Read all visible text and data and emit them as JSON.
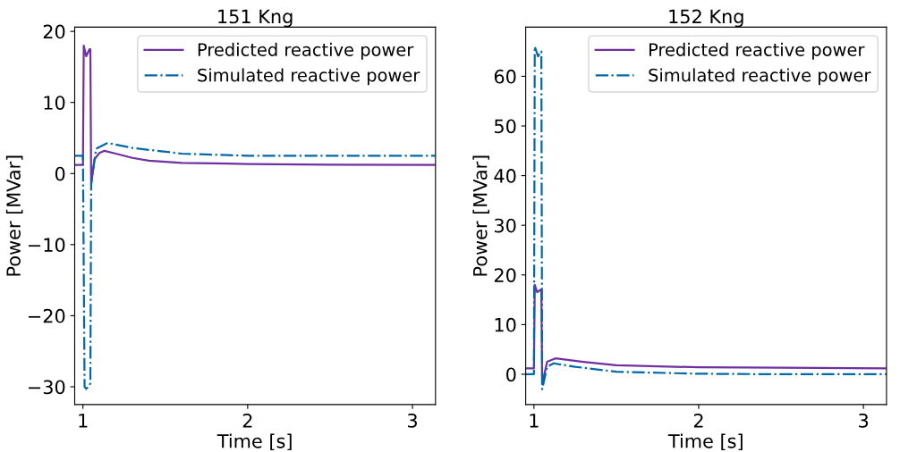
{
  "chart_data": [
    {
      "type": "line",
      "title": "151 Kng",
      "xlabel": "Time [s]",
      "ylabel": "Power [MVar]",
      "xlim": [
        0.95,
        3.14
      ],
      "xticks": [
        1,
        2,
        3
      ],
      "ylim": [
        -32.5,
        20.6
      ],
      "yticks": [
        {
          "value": -30,
          "label": "−30"
        },
        {
          "value": -20,
          "label": "−20"
        },
        {
          "value": -10,
          "label": "−10"
        },
        0,
        10,
        20
      ],
      "legend": "top right",
      "grid": false,
      "series": [
        {
          "name": "Predicted reactive power",
          "color": "#7030a0",
          "line_style": "solid",
          "x": [
            0.95,
            1.0,
            1.005,
            1.02,
            1.04,
            1.045,
            1.05,
            1.07,
            1.1,
            1.13,
            1.2,
            1.3,
            1.4,
            1.6,
            2.0,
            2.5,
            3.14
          ],
          "values": [
            1.2,
            1.2,
            18,
            16.5,
            17.5,
            17.5,
            -1.5,
            2.0,
            2.9,
            3.2,
            2.8,
            2.2,
            1.8,
            1.5,
            1.35,
            1.25,
            1.2
          ]
        },
        {
          "name": "Simulated reactive power",
          "color": "#0068a8",
          "line_style": "dashdot",
          "x": [
            0.95,
            1.0,
            1.01,
            1.02,
            1.04,
            1.045,
            1.05,
            1.08,
            1.15,
            1.3,
            1.6,
            2.0,
            2.5,
            3.14
          ],
          "values": [
            2.5,
            2.5,
            -30,
            -30.3,
            -29.8,
            -29.5,
            -1.5,
            3.5,
            4.3,
            3.6,
            2.8,
            2.5,
            2.5,
            2.5
          ]
        }
      ]
    },
    {
      "type": "line",
      "title": "152 Kng",
      "xlabel": "Time [s]",
      "ylabel": "Power [MVar]",
      "xlim": [
        0.95,
        3.14
      ],
      "xticks": [
        1,
        2,
        3
      ],
      "ylim": [
        -6.1,
        69.9
      ],
      "yticks": [
        0,
        10,
        20,
        30,
        40,
        50,
        60
      ],
      "legend": "top right",
      "grid": false,
      "series": [
        {
          "name": "Predicted reactive power",
          "color": "#7030a0",
          "line_style": "solid",
          "x": [
            0.95,
            1.0,
            1.005,
            1.02,
            1.04,
            1.045,
            1.05,
            1.08,
            1.13,
            1.3,
            1.5,
            2.0,
            2.5,
            3.14
          ],
          "values": [
            1.2,
            1.2,
            18,
            16.5,
            17,
            17,
            -2,
            2.5,
            3.2,
            2.5,
            1.8,
            1.4,
            1.3,
            1.2
          ]
        },
        {
          "name": "Simulated reactive power",
          "color": "#0068a8",
          "line_style": "dashdot",
          "x": [
            0.95,
            1.0,
            1.005,
            1.025,
            1.04,
            1.045,
            1.05,
            1.08,
            1.12,
            1.25,
            1.5,
            2.0,
            2.5,
            3.14
          ],
          "values": [
            0,
            0,
            66,
            64,
            65,
            65,
            -3,
            1.5,
            2.2,
            1.5,
            0.5,
            0.1,
            0,
            0
          ]
        }
      ]
    }
  ]
}
